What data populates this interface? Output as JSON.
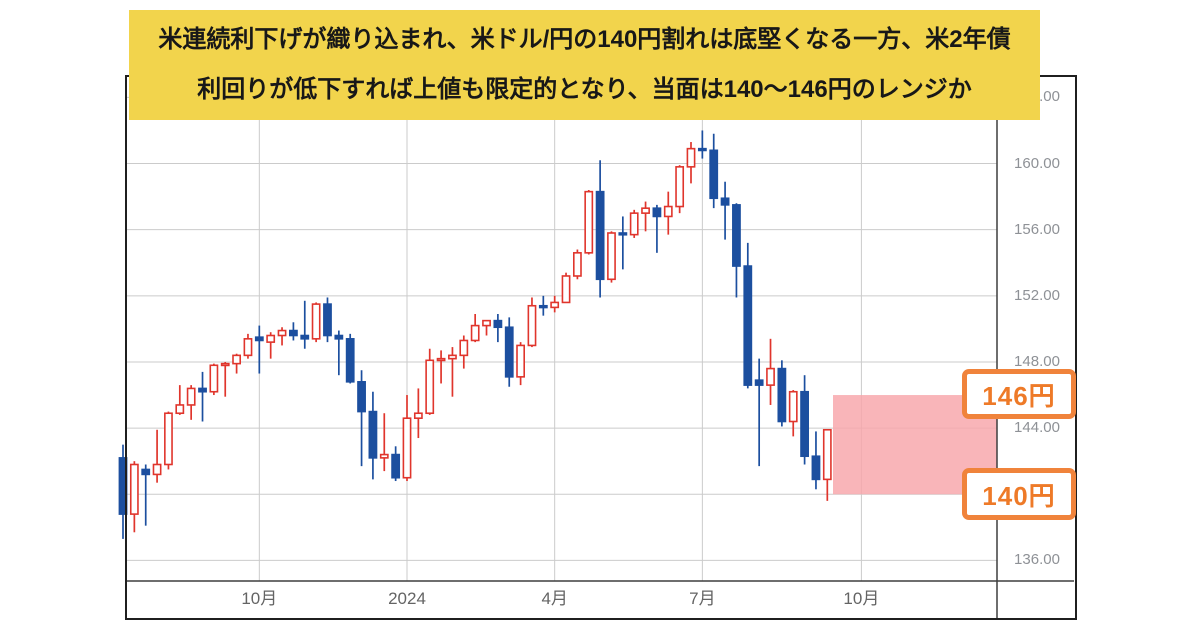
{
  "banner": {
    "line1": "米連続利下げが織り込まれ、米ドル/円の140円割れは底堅くなる一方、米2年債",
    "line2": "利回りが低下すれば上値も限定的となり、当面は140〜146円のレンジか",
    "bg_color": "#F2D44C"
  },
  "range_labels": {
    "upper": "146円",
    "lower": "140円",
    "accent_color": "#F0833B"
  },
  "chart_data": {
    "type": "candlestick",
    "title": "",
    "xlabel": "",
    "ylabel": "",
    "grid": true,
    "ylim": [
      136,
      164
    ],
    "y_axis": {
      "tick_interval": 4,
      "ticks": [
        {
          "label": "164.00",
          "value": 164
        },
        {
          "label": "160.00",
          "value": 160
        },
        {
          "label": "156.00",
          "value": 156
        },
        {
          "label": "152.00",
          "value": 152
        },
        {
          "label": "148.00",
          "value": 148
        },
        {
          "label": "144.00",
          "value": 144
        },
        {
          "label": "140.00",
          "value": 140
        },
        {
          "label": "136.00",
          "value": 136
        }
      ]
    },
    "x_axis": {
      "ticks": [
        {
          "label": "10月",
          "week": 12
        },
        {
          "label": "2024",
          "week": 25
        },
        {
          "label": "4月",
          "week": 38
        },
        {
          "label": "7月",
          "week": 51
        },
        {
          "label": "10月",
          "week": 65
        }
      ]
    },
    "colors": {
      "up": "#E0352C",
      "down": "#1C4F9F",
      "grid": "#cbcbcb",
      "axis": "#3f3f3f",
      "highlight": "#F8A5AA"
    },
    "highlight_range": {
      "price_from": 140,
      "price_to": 146
    },
    "candle_columns": [
      "week_start",
      "open",
      "high",
      "low",
      "close"
    ],
    "candles": [
      [
        "2023-07-10",
        142.2,
        143.0,
        137.3,
        138.8
      ],
      [
        "2023-07-17",
        138.8,
        142.0,
        137.7,
        141.8
      ],
      [
        "2023-07-24",
        141.5,
        141.8,
        138.1,
        141.2
      ],
      [
        "2023-07-31",
        141.2,
        143.9,
        140.7,
        141.8
      ],
      [
        "2023-08-07",
        141.8,
        145.0,
        141.5,
        144.9
      ],
      [
        "2023-08-14",
        144.9,
        146.6,
        144.8,
        145.4
      ],
      [
        "2023-08-21",
        145.4,
        146.6,
        144.5,
        146.4
      ],
      [
        "2023-08-28",
        146.4,
        147.4,
        144.4,
        146.2
      ],
      [
        "2023-09-04",
        146.2,
        147.9,
        146.0,
        147.8
      ],
      [
        "2023-09-11",
        147.8,
        148.0,
        145.9,
        147.9
      ],
      [
        "2023-09-18",
        147.9,
        148.5,
        147.3,
        148.4
      ],
      [
        "2023-09-25",
        148.4,
        149.7,
        148.2,
        149.4
      ],
      [
        "2023-10-02",
        149.5,
        150.2,
        147.3,
        149.3
      ],
      [
        "2023-10-09",
        149.2,
        149.8,
        148.2,
        149.6
      ],
      [
        "2023-10-16",
        149.6,
        150.1,
        149.0,
        149.9
      ],
      [
        "2023-10-23",
        149.9,
        150.4,
        149.3,
        149.6
      ],
      [
        "2023-10-30",
        149.6,
        151.7,
        148.8,
        149.4
      ],
      [
        "2023-11-06",
        149.4,
        151.6,
        149.2,
        151.5
      ],
      [
        "2023-11-13",
        151.5,
        151.9,
        149.2,
        149.6
      ],
      [
        "2023-11-20",
        149.6,
        149.9,
        147.2,
        149.4
      ],
      [
        "2023-11-27",
        149.4,
        149.7,
        146.7,
        146.8
      ],
      [
        "2023-12-04",
        146.8,
        147.5,
        141.7,
        145.0
      ],
      [
        "2023-12-11",
        145.0,
        146.2,
        140.9,
        142.2
      ],
      [
        "2023-12-18",
        142.2,
        144.9,
        141.4,
        142.4
      ],
      [
        "2023-12-25",
        142.4,
        142.9,
        140.8,
        141.0
      ],
      [
        "2024-01-01",
        141.0,
        146.0,
        140.8,
        144.6
      ],
      [
        "2024-01-08",
        144.6,
        146.4,
        143.4,
        144.9
      ],
      [
        "2024-01-15",
        144.9,
        148.8,
        144.8,
        148.1
      ],
      [
        "2024-01-22",
        148.1,
        148.7,
        146.7,
        148.2
      ],
      [
        "2024-01-29",
        148.2,
        148.9,
        145.9,
        148.4
      ],
      [
        "2024-02-05",
        148.4,
        149.6,
        147.6,
        149.3
      ],
      [
        "2024-02-12",
        149.3,
        150.9,
        149.2,
        150.2
      ],
      [
        "2024-02-19",
        150.2,
        150.5,
        149.6,
        150.5
      ],
      [
        "2024-02-26",
        150.5,
        150.9,
        149.2,
        150.1
      ],
      [
        "2024-03-04",
        150.1,
        150.7,
        146.5,
        147.1
      ],
      [
        "2024-03-11",
        147.1,
        149.2,
        146.6,
        149.0
      ],
      [
        "2024-03-18",
        149.0,
        151.9,
        148.9,
        151.4
      ],
      [
        "2024-03-25",
        151.4,
        152.0,
        150.8,
        151.3
      ],
      [
        "2024-04-01",
        151.3,
        152.0,
        151.0,
        151.6
      ],
      [
        "2024-04-08",
        151.6,
        153.4,
        151.6,
        153.2
      ],
      [
        "2024-04-15",
        153.2,
        154.8,
        153.0,
        154.6
      ],
      [
        "2024-04-22",
        154.6,
        158.4,
        154.5,
        158.3
      ],
      [
        "2024-04-29",
        158.3,
        160.2,
        151.9,
        153.0
      ],
      [
        "2024-05-06",
        153.0,
        155.9,
        152.8,
        155.8
      ],
      [
        "2024-05-13",
        155.8,
        156.8,
        153.6,
        155.7
      ],
      [
        "2024-05-20",
        155.7,
        157.2,
        155.5,
        157.0
      ],
      [
        "2024-05-27",
        157.0,
        157.7,
        155.9,
        157.3
      ],
      [
        "2024-06-03",
        157.3,
        157.5,
        154.6,
        156.8
      ],
      [
        "2024-06-10",
        156.8,
        158.3,
        155.7,
        157.4
      ],
      [
        "2024-06-17",
        157.4,
        159.9,
        157.0,
        159.8
      ],
      [
        "2024-06-24",
        159.8,
        161.3,
        158.8,
        160.9
      ],
      [
        "2024-07-01",
        160.9,
        162.0,
        160.3,
        160.8
      ],
      [
        "2024-07-08",
        160.8,
        161.8,
        157.3,
        157.9
      ],
      [
        "2024-07-15",
        157.9,
        158.9,
        155.4,
        157.5
      ],
      [
        "2024-07-22",
        157.5,
        157.6,
        151.9,
        153.8
      ],
      [
        "2024-07-29",
        153.8,
        155.2,
        146.4,
        146.6
      ],
      [
        "2024-08-05",
        146.9,
        148.2,
        141.7,
        146.6
      ],
      [
        "2024-08-12",
        146.6,
        149.4,
        145.4,
        147.6
      ],
      [
        "2024-08-19",
        147.6,
        148.1,
        144.1,
        144.4
      ],
      [
        "2024-08-26",
        144.4,
        146.3,
        143.5,
        146.2
      ],
      [
        "2024-09-02",
        146.2,
        147.2,
        141.8,
        142.3
      ],
      [
        "2024-09-09",
        142.3,
        143.8,
        140.3,
        140.9
      ],
      [
        "2024-09-16",
        140.9,
        143.9,
        139.6,
        143.9
      ]
    ]
  }
}
